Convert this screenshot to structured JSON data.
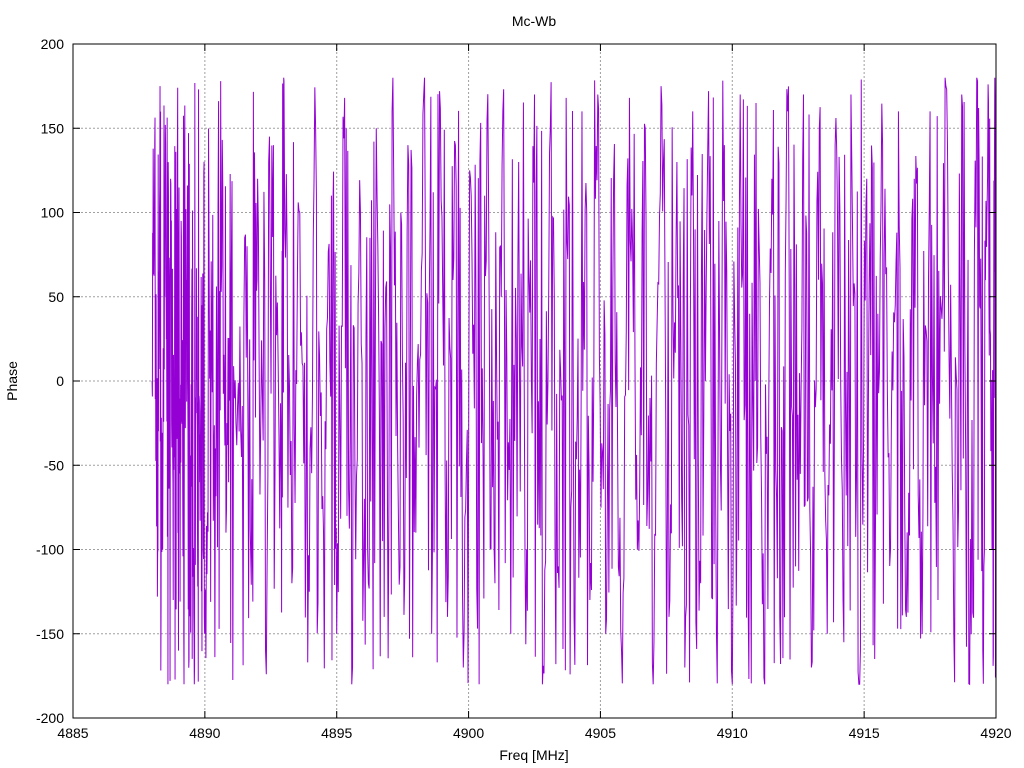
{
  "chart_data": {
    "type": "line",
    "title": "Mc-Wb",
    "xlabel": "Freq [MHz]",
    "ylabel": "Phase",
    "xlim": [
      4885,
      4920
    ],
    "ylim": [
      -200,
      200
    ],
    "x_ticks": [
      4885,
      4890,
      4895,
      4900,
      4905,
      4910,
      4915,
      4920
    ],
    "y_ticks": [
      -200,
      -150,
      -100,
      -50,
      0,
      50,
      100,
      150,
      200
    ],
    "grid": true,
    "series": [
      {
        "color": "#9400d3",
        "x_start": 4888.0,
        "x_end": 4920.0,
        "points_sampled": [
          [
            4888.0,
            0
          ],
          [
            4888.1,
            142
          ],
          [
            4888.2,
            -128
          ],
          [
            4888.3,
            175
          ],
          [
            4888.4,
            -100
          ],
          [
            4888.5,
            152
          ],
          [
            4888.6,
            -180
          ],
          [
            4888.7,
            120
          ],
          [
            4888.8,
            -130
          ],
          [
            4888.9,
            136
          ],
          [
            4889.0,
            -160
          ],
          [
            4889.1,
            95
          ],
          [
            4889.2,
            -150
          ],
          [
            4889.3,
            60
          ],
          [
            4889.4,
            -165
          ],
          [
            4889.5,
            40
          ],
          [
            4889.6,
            -180
          ],
          [
            4889.7,
            20
          ],
          [
            4889.8,
            -60
          ],
          [
            4889.9,
            45
          ],
          [
            4890.0,
            -150
          ],
          [
            4890.2,
            30
          ],
          [
            4890.4,
            -40
          ],
          [
            4890.6,
            178
          ],
          [
            4890.8,
            -90
          ],
          [
            4891.0,
            60
          ],
          [
            4891.3,
            -30
          ],
          [
            4891.6,
            80
          ],
          [
            4891.8,
            -100
          ],
          [
            4892.0,
            120
          ],
          [
            4892.3,
            -160
          ],
          [
            4892.6,
            140
          ],
          [
            4892.9,
            -60
          ],
          [
            4893.0,
            178
          ],
          [
            4893.3,
            -120
          ],
          [
            4893.6,
            100
          ],
          [
            4893.9,
            -167
          ],
          [
            4894.2,
            150
          ],
          [
            4894.5,
            -90
          ],
          [
            4894.8,
            110
          ],
          [
            4895.0,
            -150
          ],
          [
            4895.3,
            168
          ],
          [
            4895.6,
            -170
          ],
          [
            4895.9,
            100
          ],
          [
            4896.2,
            -120
          ],
          [
            4896.5,
            150
          ],
          [
            4896.8,
            -140
          ],
          [
            4897.1,
            160
          ],
          [
            4897.4,
            -110
          ],
          [
            4897.7,
            140
          ],
          [
            4898.0,
            -90
          ],
          [
            4898.3,
            170
          ],
          [
            4898.6,
            -150
          ],
          [
            4898.9,
            172
          ],
          [
            4899.2,
            -140
          ],
          [
            4899.5,
            140
          ],
          [
            4899.8,
            -170
          ],
          [
            4900.1,
            110
          ],
          [
            4900.4,
            -180
          ],
          [
            4900.7,
            155
          ],
          [
            4901.0,
            -120
          ],
          [
            4901.3,
            160
          ],
          [
            4901.6,
            -150
          ],
          [
            4901.9,
            130
          ],
          [
            4902.2,
            -100
          ],
          [
            4902.5,
            170
          ],
          [
            4902.8,
            -180
          ],
          [
            4903.1,
            150
          ],
          [
            4903.4,
            -110
          ],
          [
            4903.7,
            168
          ],
          [
            4904.0,
            -140
          ],
          [
            4904.3,
            160
          ],
          [
            4904.6,
            -130
          ],
          [
            4904.9,
            170
          ],
          [
            4905.2,
            -150
          ],
          [
            4905.5,
            120
          ],
          [
            4905.8,
            -160
          ],
          [
            4906.1,
            168
          ],
          [
            4906.4,
            -100
          ],
          [
            4906.7,
            150
          ],
          [
            4907.0,
            -180
          ],
          [
            4907.3,
            175
          ],
          [
            4907.6,
            -140
          ],
          [
            4907.9,
            130
          ],
          [
            4908.2,
            -170
          ],
          [
            4908.5,
            160
          ],
          [
            4908.8,
            -120
          ],
          [
            4909.1,
            172
          ],
          [
            4909.4,
            -150
          ],
          [
            4909.7,
            140
          ],
          [
            4910.0,
            -180
          ],
          [
            4910.3,
            170
          ],
          [
            4910.6,
            -130
          ],
          [
            4910.9,
            165
          ],
          [
            4911.2,
            -176
          ],
          [
            4911.5,
            120
          ],
          [
            4911.8,
            -140
          ],
          [
            4912.1,
            160
          ],
          [
            4912.4,
            -110
          ],
          [
            4912.7,
            170
          ],
          [
            4913.0,
            -170
          ],
          [
            4913.3,
            150
          ],
          [
            4913.6,
            -150
          ],
          [
            4913.9,
            140
          ],
          [
            4914.2,
            -130
          ],
          [
            4914.5,
            170
          ],
          [
            4914.8,
            -180
          ],
          [
            4915.1,
            120
          ],
          [
            4915.4,
            -165
          ],
          [
            4915.7,
            140
          ],
          [
            4916.0,
            -100
          ],
          [
            4916.3,
            160
          ],
          [
            4916.6,
            -140
          ],
          [
            4916.9,
            120
          ],
          [
            4917.2,
            -150
          ],
          [
            4917.5,
            160
          ],
          [
            4917.8,
            -130
          ],
          [
            4918.1,
            175
          ],
          [
            4918.4,
            -150
          ],
          [
            4918.7,
            170
          ],
          [
            4919.0,
            -180
          ],
          [
            4919.3,
            178
          ],
          [
            4919.5,
            -160
          ],
          [
            4919.7,
            176
          ],
          [
            4919.85,
            -100
          ],
          [
            4919.95,
            166
          ],
          [
            4920.0,
            30
          ]
        ]
      }
    ]
  }
}
